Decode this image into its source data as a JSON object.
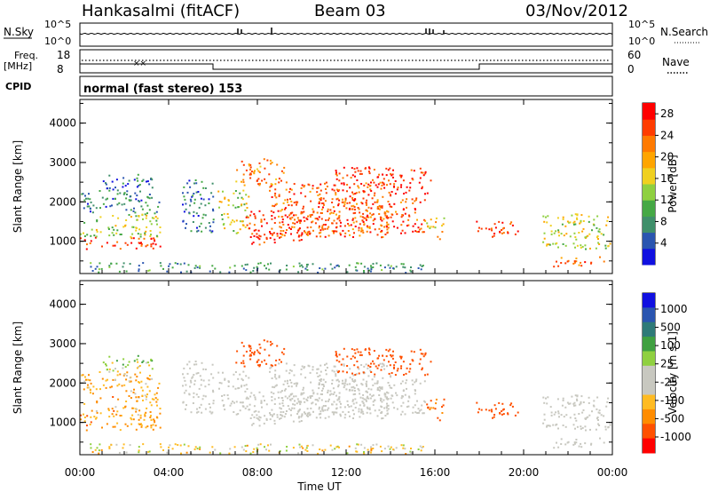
{
  "header": {
    "station": "Hankasalmi (fitACF)",
    "beam": "Beam 03",
    "date": "03/Nov/2012"
  },
  "side_labels": {
    "nsky": "N.Sky",
    "freq": "Freq.",
    "freq_unit": "[MHz]",
    "cpid": "CPID",
    "nsearch": "N.Search",
    "nave": "Nave"
  },
  "colors": {
    "power": [
      "#1010e0",
      "#2a55b0",
      "#3f8f6a",
      "#45a845",
      "#8fd040",
      "#f0d020",
      "#ffa500",
      "#ff7a00",
      "#ff3c00",
      "#ff0000"
    ],
    "velocity": [
      "#ff0000",
      "#ff5000",
      "#ff8c00",
      "#ffbb22",
      "#c8c8c0",
      "#c8c8c0",
      "#8fd040",
      "#3fa040",
      "#2e7a78",
      "#2a55b0",
      "#1010e0"
    ],
    "ground_gray": "#c8c8c0"
  },
  "chart_data": {
    "type": "heatmap",
    "x": {
      "label": "Time UT",
      "range": [
        "00:00",
        "24:00"
      ],
      "ticks": [
        "00:00",
        "04:00",
        "08:00",
        "12:00",
        "16:00",
        "20:00",
        "00:00"
      ]
    },
    "top_strips": {
      "nsky_ticks": [
        "10^5",
        "10^0"
      ],
      "nsearch_ticks": [
        "10^5",
        "10^0"
      ],
      "freq_ticks": [
        "18",
        "8"
      ],
      "nave_ticks": [
        "60",
        "0"
      ],
      "cpid_text": "normal (fast stereo) 153",
      "cpid_step_hours": [
        6.0,
        18.0
      ]
    },
    "panels": [
      {
        "name": "power",
        "ylabel": "Slant Range [km]",
        "y_ticks": [
          "4000",
          "3000",
          "2000",
          "1000"
        ],
        "y_range": [
          180,
          4600
        ],
        "colorbar": {
          "label": "Power [dB]",
          "ticks": [
            "28",
            "24",
            "20",
            "16",
            "12",
            "8",
            "4"
          ],
          "range": [
            0,
            30
          ]
        }
      },
      {
        "name": "velocity",
        "ylabel": "Slant Range [km]",
        "y_ticks": [
          "4000",
          "3000",
          "2000",
          "1000"
        ],
        "y_range": [
          180,
          4600
        ],
        "colorbar": {
          "label": "Velocity [m s-1]",
          "ticks": [
            "1000",
            "500",
            "100",
            "25",
            "-25",
            "-100",
            "-500",
            "-1000"
          ],
          "range": [
            -1000,
            1000
          ]
        }
      }
    ],
    "scatter_regions": [
      {
        "t": [
          0.0,
          3.6
        ],
        "r": [
          800,
          1100
        ],
        "power": 27,
        "velocity": -120
      },
      {
        "t": [
          0.0,
          3.6
        ],
        "r": [
          1100,
          1700
        ],
        "power": 14,
        "velocity": -110
      },
      {
        "t": [
          0.0,
          3.6
        ],
        "r": [
          1700,
          2300
        ],
        "power": 7,
        "velocity": -80
      },
      {
        "t": [
          1.0,
          3.3
        ],
        "r": [
          2300,
          2700
        ],
        "power": 6,
        "velocity": 50
      },
      {
        "t": [
          4.6,
          6.0
        ],
        "r": [
          1200,
          2600
        ],
        "power": 6,
        "velocity": 0
      },
      {
        "t": [
          6.2,
          7.6
        ],
        "r": [
          1200,
          2300
        ],
        "power": 16,
        "velocity": 10
      },
      {
        "t": [
          7.4,
          10.4
        ],
        "r": [
          900,
          1800
        ],
        "power": 26,
        "velocity": 5
      },
      {
        "t": [
          7.0,
          9.2
        ],
        "r": [
          2400,
          3100
        ],
        "power": 22,
        "velocity": -300
      },
      {
        "t": [
          8.5,
          14.0
        ],
        "r": [
          1100,
          2500
        ],
        "power": 24,
        "velocity": 0
      },
      {
        "t": [
          10.4,
          15.6
        ],
        "r": [
          1200,
          2100
        ],
        "power": 25,
        "velocity": 5
      },
      {
        "t": [
          11.5,
          15.8
        ],
        "r": [
          2200,
          2900
        ],
        "power": 27,
        "velocity": -300
      },
      {
        "t": [
          15.6,
          16.4
        ],
        "r": [
          1000,
          1600
        ],
        "power": 18,
        "velocity": -200
      },
      {
        "t": [
          17.8,
          19.8
        ],
        "r": [
          1100,
          1500
        ],
        "power": 26,
        "velocity": -300
      },
      {
        "t": [
          20.8,
          23.9
        ],
        "r": [
          800,
          1700
        ],
        "power": 15,
        "velocity": 0
      },
      {
        "t": [
          21.3,
          23.6
        ],
        "r": [
          350,
          600
        ],
        "power": 24,
        "velocity": 0
      },
      {
        "t": [
          0.0,
          15.5
        ],
        "r": [
          200,
          450
        ],
        "power": 8,
        "velocity": -30
      }
    ]
  }
}
